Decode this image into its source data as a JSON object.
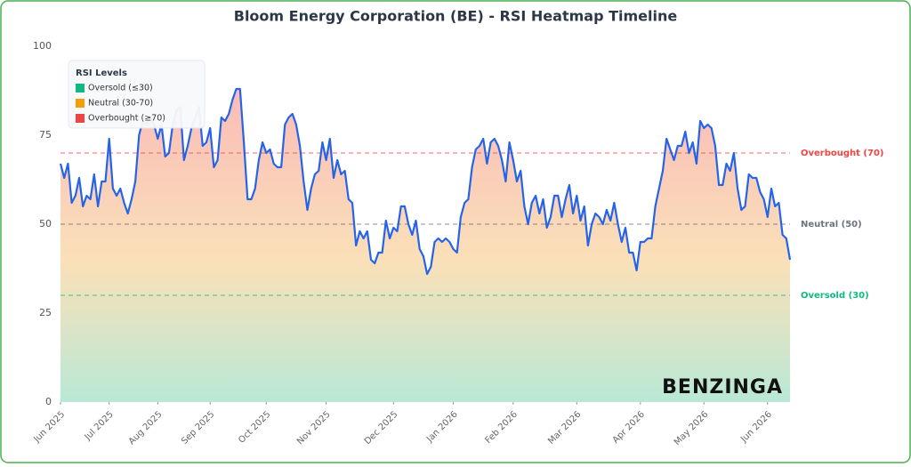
{
  "chart_data": {
    "type": "line",
    "title": "Bloom Energy Corporation (BE) - RSI Heatmap Timeline",
    "values": [
      67,
      63,
      67,
      56,
      58,
      63,
      55,
      58,
      57,
      64,
      55,
      62,
      62,
      74,
      60,
      58,
      60,
      56,
      53,
      57,
      62,
      75,
      79,
      78,
      80,
      78,
      74,
      78,
      69,
      70,
      78,
      82,
      83,
      68,
      72,
      77,
      80,
      83,
      72,
      73,
      77,
      66,
      68,
      80,
      79,
      81,
      85,
      88,
      88,
      73,
      57,
      57,
      60,
      68,
      73,
      70,
      71,
      67,
      66,
      66,
      78,
      80,
      81,
      78,
      72,
      62,
      54,
      60,
      64,
      65,
      73,
      68,
      74,
      63,
      68,
      64,
      65,
      57,
      56,
      44,
      48,
      46,
      48,
      40,
      39,
      42,
      42,
      51,
      46,
      49,
      48,
      55,
      55,
      50,
      47,
      51,
      43,
      41,
      36,
      38,
      45,
      46,
      45,
      46,
      45,
      43,
      42,
      52,
      56,
      57,
      66,
      71,
      72,
      74,
      67,
      73,
      74,
      72,
      68,
      62,
      73,
      68,
      62,
      65,
      55,
      50,
      56,
      58,
      53,
      57,
      49,
      52,
      58,
      58,
      52,
      57,
      61,
      53,
      58,
      51,
      55,
      44,
      50,
      53,
      52,
      50,
      54,
      51,
      56,
      50,
      45,
      49,
      42,
      42,
      37,
      45,
      45,
      46,
      46,
      55,
      60,
      65,
      74,
      71,
      68,
      72,
      72,
      76,
      70,
      73,
      67,
      79,
      77,
      78,
      77,
      72,
      61,
      61,
      67,
      65,
      70,
      60,
      54,
      55,
      64,
      63,
      63,
      59,
      57,
      52,
      60,
      55,
      56,
      47,
      46,
      40
    ],
    "color": "#2563eb",
    "xlim": [
      0,
      195
    ],
    "xticks": [
      {
        "value": 0,
        "label": "Jun 2025"
      },
      {
        "value": 13,
        "label": "Jul 2025"
      },
      {
        "value": 26,
        "label": "Aug 2025"
      },
      {
        "value": 40,
        "label": "Sep 2025"
      },
      {
        "value": 55,
        "label": "Oct 2025"
      },
      {
        "value": 71,
        "label": "Nov 2025"
      },
      {
        "value": 89,
        "label": "Dec 2025"
      },
      {
        "value": 105,
        "label": "Jan 2026"
      },
      {
        "value": 121,
        "label": "Feb 2026"
      },
      {
        "value": 138,
        "label": "Mar 2026"
      },
      {
        "value": 155,
        "label": "Apr 2026"
      },
      {
        "value": 172,
        "label": "May 2026"
      },
      {
        "value": 189,
        "label": "Jun 2026"
      }
    ],
    "ylim": [
      0,
      100
    ],
    "yticks": [
      0,
      25,
      50,
      75,
      100
    ],
    "reference_lines": [
      {
        "value": 70,
        "label": "Overbought (70)",
        "color": "#ef4444"
      },
      {
        "value": 50,
        "label": "Neutral (50)",
        "color": "#6b7280"
      },
      {
        "value": 30,
        "label": "Oversold (30)",
        "color": "#10b981"
      }
    ],
    "legend": {
      "title": "RSI Levels",
      "position": "upper left",
      "items": [
        {
          "label": "Oversold (≤30)",
          "color": "#10b981"
        },
        {
          "label": "Neutral (30-70)",
          "color": "#f59e0b"
        },
        {
          "label": "Overbought (≥70)",
          "color": "#ef4444"
        }
      ]
    },
    "watermark": "BENZINGA"
  }
}
